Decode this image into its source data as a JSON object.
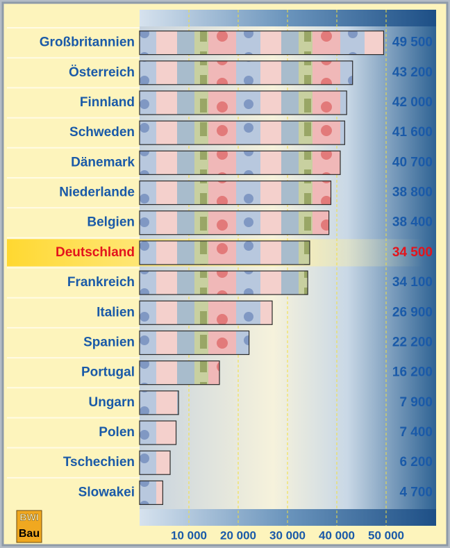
{
  "chart_data": {
    "type": "barh",
    "categories": [
      "Großbritannien",
      "Österreich",
      "Finnland",
      "Schweden",
      "Dänemark",
      "Niederlande",
      "Belgien",
      "Deutschland",
      "Frankreich",
      "Italien",
      "Spanien",
      "Portugal",
      "Ungarn",
      "Polen",
      "Tschechien",
      "Slowakei"
    ],
    "values": [
      49500,
      43200,
      42000,
      41600,
      40700,
      38800,
      38400,
      34500,
      34100,
      26900,
      22200,
      16200,
      7900,
      7400,
      6200,
      4700
    ],
    "value_labels": [
      "49 500",
      "43 200",
      "42 000",
      "41 600",
      "40 700",
      "38 800",
      "38 400",
      "34 500",
      "34 100",
      "26 900",
      "22 200",
      "16 200",
      "7 900",
      "7 400",
      "6 200",
      "4 700"
    ],
    "xlim": [
      0,
      60000
    ],
    "xticks": [
      {
        "value": 10000,
        "label": "10 000"
      },
      {
        "value": 20000,
        "label": "20 000"
      },
      {
        "value": 30000,
        "label": "30 000"
      },
      {
        "value": 40000,
        "label": "40 000"
      },
      {
        "value": 50000,
        "label": "50 000"
      }
    ],
    "grid": true,
    "label_color": "#1a5aa8",
    "highlight_category": "Deutschland",
    "highlight_color": "#e3141c"
  },
  "logo": {
    "line1": "BWI",
    "line2": "Bau"
  }
}
